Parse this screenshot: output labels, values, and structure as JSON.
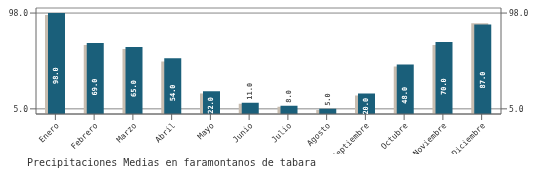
{
  "chart_data": {
    "type": "bar",
    "title": "Precipitaciones Medias en faramontanos de tabara",
    "categories": [
      "Enero",
      "Febrero",
      "Marzo",
      "Abril",
      "Mayo",
      "Junio",
      "Julio",
      "Agosto",
      "Septiembre",
      "Octubre",
      "Noviembre",
      "Diciembre"
    ],
    "series": [
      {
        "color": "#c8bdb0",
        "values": [
          96,
          67,
          63,
          51,
          20,
          10,
          7,
          4,
          18,
          46,
          67,
          88
        ]
      },
      {
        "color": "#1a5f7a",
        "values": [
          98,
          69,
          65,
          54,
          22,
          11,
          8,
          5,
          20,
          48,
          70,
          87
        ],
        "value_labels": [
          "98.0",
          "69.0",
          "65.0",
          "54.0",
          "22.0",
          "11.0",
          "8.0",
          "5.0",
          "20.0",
          "48.0",
          "70.0",
          "87.0"
        ]
      }
    ],
    "ylim": [
      0,
      102.9
    ],
    "yticks": [
      {
        "value": 5,
        "label": "5.0"
      },
      {
        "value": 98,
        "label": "98.0"
      }
    ],
    "y2lim": [
      0,
      102.9
    ],
    "y2ticks": [
      {
        "value": 5,
        "label": "5.0"
      },
      {
        "value": 98,
        "label": "98.0"
      }
    ],
    "grid": true,
    "data_labels": true
  }
}
